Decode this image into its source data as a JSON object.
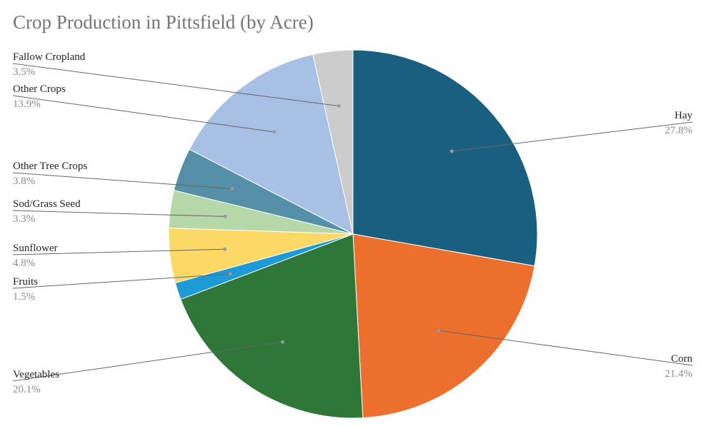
{
  "chart_data": {
    "type": "pie",
    "title": "Crop Production in Pittsfield (by Acre)",
    "slices": [
      {
        "label": "Hay",
        "value": 27.8,
        "pct": "27.8%",
        "color": "#1a5f80"
      },
      {
        "label": "Corn",
        "value": 21.4,
        "pct": "21.4%",
        "color": "#ec6f2e"
      },
      {
        "label": "Vegetables",
        "value": 20.1,
        "pct": "20.1%",
        "color": "#2e7738"
      },
      {
        "label": "Fruits",
        "value": 1.5,
        "pct": "1.5%",
        "color": "#1e9bd7"
      },
      {
        "label": "Sunflower",
        "value": 4.8,
        "pct": "4.8%",
        "color": "#fcd866"
      },
      {
        "label": "Sod/Grass Seed",
        "value": 3.3,
        "pct": "3.3%",
        "color": "#b6d7a8"
      },
      {
        "label": "Other Tree Crops",
        "value": 3.8,
        "pct": "3.8%",
        "color": "#5690a8"
      },
      {
        "label": "Other Crops",
        "value": 13.9,
        "pct": "13.9%",
        "color": "#a8c0e4"
      },
      {
        "label": "Fallow Cropland",
        "value": 3.5,
        "pct": "3.5%",
        "color": "#cccccc"
      }
    ],
    "start_angle_deg": 0,
    "direction": "clockwise",
    "legend": "labels-outside"
  }
}
